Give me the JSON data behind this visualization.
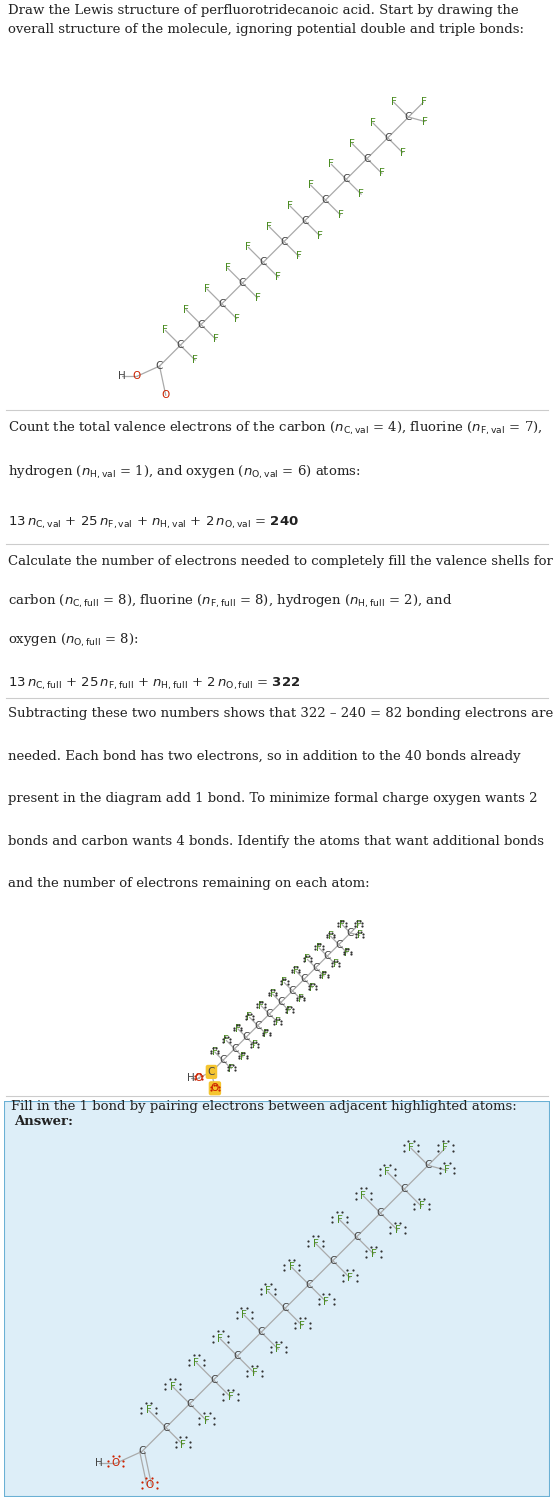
{
  "bg_color": "#ffffff",
  "answer_bg": "#ddeef8",
  "answer_border": "#6ab0d4",
  "bond_color": "#aaaaaa",
  "C_color": "#444444",
  "F_color": "#4a8c20",
  "O_color": "#cc2200",
  "H_color": "#444444",
  "highlight_color": "#f5c530",
  "text_color": "#222222",
  "line_color": "#cccccc",
  "font_size_atom": 7.5,
  "font_size_text": 9.5,
  "section1_title": "Draw the Lewis structure of perfluorotridecanoic acid. Start by drawing the\noverall structure of the molecule, ignoring potential double and triple bonds:",
  "section2_lines": [
    "Count the total valence electrons of the carbon ($n_{\\mathrm{C,val}}$ = 4), fluorine ($n_{\\mathrm{F,val}}$ = 7),",
    "hydrogen ($n_{\\mathrm{H,val}}$ = 1), and oxygen ($n_{\\mathrm{O,val}}$ = 6) atoms:",
    "$13\\,n_{\\mathrm{C,val}}$ + $25\\,n_{\\mathrm{F,val}}$ + $n_{\\mathrm{H,val}}$ + $2\\,n_{\\mathrm{O,val}}$ = $\\mathbf{240}$"
  ],
  "section3_lines": [
    "Calculate the number of electrons needed to completely fill the valence shells for",
    "carbon ($n_{\\mathrm{C,full}}$ = 8), fluorine ($n_{\\mathrm{F,full}}$ = 8), hydrogen ($n_{\\mathrm{H,full}}$ = 2), and",
    "oxygen ($n_{\\mathrm{O,full}}$ = 8):",
    "$13\\,n_{\\mathrm{C,full}}$ + $25\\,n_{\\mathrm{F,full}}$ + $n_{\\mathrm{H,full}}$ + $2\\,n_{\\mathrm{O,full}}$ = $\\mathbf{322}$"
  ],
  "section4_lines": [
    "Subtracting these two numbers shows that 322 – 240 = 82 bonding electrons are",
    "needed. Each bond has two electrons, so in addition to the 40 bonds already",
    "present in the diagram add 1 bond. To minimize formal charge oxygen wants 2",
    "bonds and carbon wants 4 bonds. Identify the atoms that want additional bonds",
    "and the number of electrons remaining on each atom:"
  ],
  "section5_text": "Fill in the 1 bond by pairing electrons between adjacent highlighted atoms:",
  "answer_label": "Answer:"
}
